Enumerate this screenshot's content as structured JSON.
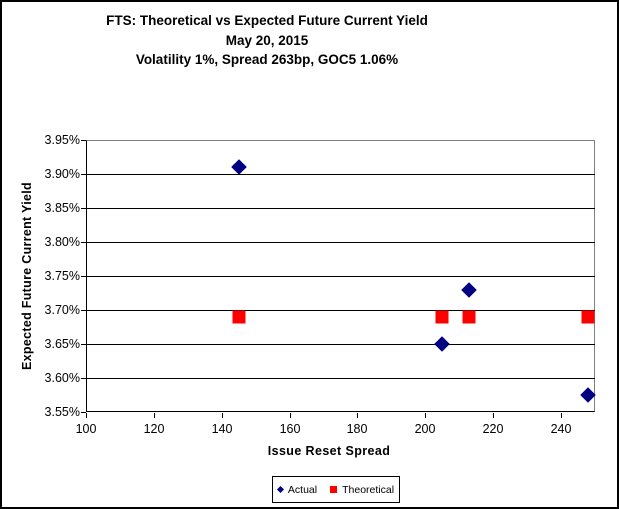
{
  "window": {
    "background_color": "#FFFFFF",
    "border_color": "#000000"
  },
  "chart_data": {
    "type": "scatter",
    "title_lines": [
      "FTS: Theoretical vs Expected Future Current Yield",
      "May 20, 2015",
      "Volatility 1%, Spread 263bp, GOC5 1.06%"
    ],
    "xlabel": "Issue Reset Spread",
    "ylabel": "Expected Future Current Yield",
    "xlim": [
      100,
      250
    ],
    "ylim": [
      3.55,
      3.95
    ],
    "xticks": [
      100,
      120,
      140,
      160,
      180,
      200,
      220,
      240
    ],
    "yticks": [
      3.95,
      3.9,
      3.85,
      3.8,
      3.75,
      3.7,
      3.65,
      3.6,
      3.55
    ],
    "ytick_labels": [
      "3.95%",
      "3.90%",
      "3.85%",
      "3.80%",
      "3.75%",
      "3.70%",
      "3.65%",
      "3.60%",
      "3.55%"
    ],
    "grid": "horizontal-major",
    "gridline_color": "#000000",
    "plot_border_color": "#808080",
    "legend_position": "bottom-center",
    "series": [
      {
        "name": "Actual",
        "marker": "diamond",
        "color": "#000080",
        "points": [
          [
            145,
            3.91
          ],
          [
            205,
            3.65
          ],
          [
            213,
            3.73
          ],
          [
            248,
            3.575
          ]
        ]
      },
      {
        "name": "Theoretical",
        "marker": "square",
        "color": "#FF0000",
        "points": [
          [
            145,
            3.69
          ],
          [
            205,
            3.69
          ],
          [
            213,
            3.69
          ],
          [
            248,
            3.69
          ]
        ]
      }
    ]
  }
}
